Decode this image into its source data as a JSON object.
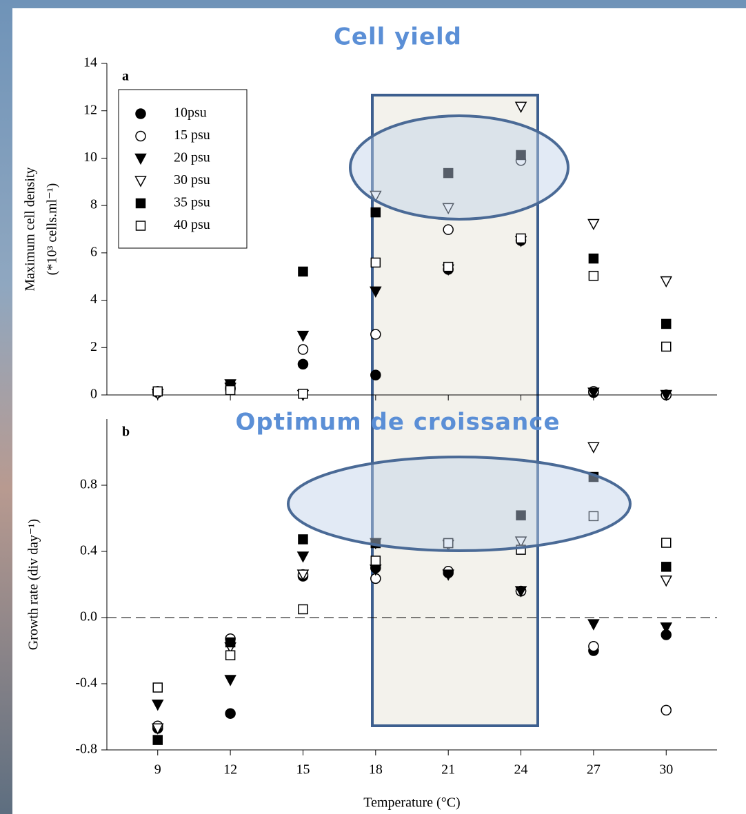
{
  "chart_data": [
    {
      "type": "scatter",
      "annotation": "Cell yield",
      "panel_label": "a",
      "y_label": [
        "Maximum cell density",
        "(*10³ cells.ml⁻¹)"
      ],
      "x": [
        9,
        12,
        15,
        18,
        21,
        24,
        27,
        30
      ],
      "xlim": [
        6.9,
        32.1
      ],
      "xticks": [
        9,
        12,
        15,
        18,
        21,
        24,
        27,
        30
      ],
      "xtick_labels": false,
      "ylim": [
        0,
        14
      ],
      "yticks": [
        0,
        2,
        4,
        6,
        8,
        10,
        12,
        14
      ],
      "legend": "upper left",
      "series": [
        {
          "name": "10psu",
          "marker": "circle",
          "color": "#000000",
          "values": [
            0.1,
            0.3,
            1.3,
            0.84,
            5.3,
            6.52,
            0.1,
            0.0
          ]
        },
        {
          "name": "15 psu",
          "marker": "circle-open",
          "color": "#000000",
          "values": [
            0.15,
            0.25,
            1.92,
            2.56,
            6.98,
            9.9,
            0.15,
            0.0
          ]
        },
        {
          "name": "20 psu",
          "marker": "triangle-down",
          "color": "#000000",
          "values": [
            0.05,
            0.45,
            2.5,
            4.37,
            5.3,
            6.5,
            0.1,
            0.0
          ]
        },
        {
          "name": "30 psu",
          "marker": "triangle-down-open",
          "color": "#000000",
          "values": [
            0.05,
            0.3,
            0.0,
            8.41,
            7.89,
            12.17,
            7.22,
            4.8
          ]
        },
        {
          "name": "35 psu",
          "marker": "square",
          "color": "#000000",
          "values": [
            0.15,
            0.35,
            5.21,
            7.71,
            9.37,
            10.13,
            5.76,
            3.0
          ]
        },
        {
          "name": "40 psu",
          "marker": "square-open",
          "color": "#000000",
          "values": [
            0.15,
            0.2,
            0.05,
            5.59,
            5.41,
            6.61,
            5.03,
            2.04
          ]
        }
      ]
    },
    {
      "type": "scatter",
      "annotation": "Optimum de croissance",
      "panel_label": "b",
      "y_label": [
        "Growth rate (div day⁻¹)"
      ],
      "x_label": "Temperature (°C)",
      "x": [
        9,
        12,
        15,
        18,
        21,
        24,
        27,
        30
      ],
      "xlim": [
        6.9,
        32.1
      ],
      "xticks": [
        9,
        12,
        15,
        18,
        21,
        24,
        27,
        30
      ],
      "xtick_labels": true,
      "ylim": [
        -0.8,
        1.2
      ],
      "yticks": [
        -0.8,
        -0.4,
        {
          "value": 0,
          "label": "0.0"
        },
        0.4,
        0.8
      ],
      "hline": 0,
      "series": [
        {
          "marker": "circle",
          "color": "#000000",
          "values": [
            -0.67,
            -0.58,
            0.25,
            0.3,
            0.27,
            0.16,
            -0.2,
            -0.104
          ]
        },
        {
          "marker": "circle-open",
          "color": "#000000",
          "values": [
            -0.655,
            -0.128,
            0.26,
            0.236,
            0.28,
            0.16,
            -0.174,
            -0.56
          ]
        },
        {
          "marker": "triangle-down",
          "color": "#000000",
          "values": [
            -0.526,
            -0.377,
            0.369,
            0.29,
            0.26,
            0.16,
            -0.04,
            -0.06
          ]
        },
        {
          "marker": "triangle-down-open",
          "color": "#000000",
          "values": [
            -0.67,
            -0.18,
            0.26,
            0.45,
            0.44,
            0.46,
            1.03,
            0.224
          ]
        },
        {
          "marker": "square",
          "color": "#000000",
          "values": [
            -0.74,
            -0.15,
            0.473,
            0.45,
            0.45,
            0.618,
            0.85,
            0.307
          ]
        },
        {
          "marker": "square-open",
          "color": "#000000",
          "values": [
            -0.423,
            -0.228,
            0.05,
            0.344,
            0.45,
            0.41,
            0.613,
            0.452
          ]
        }
      ]
    }
  ]
}
